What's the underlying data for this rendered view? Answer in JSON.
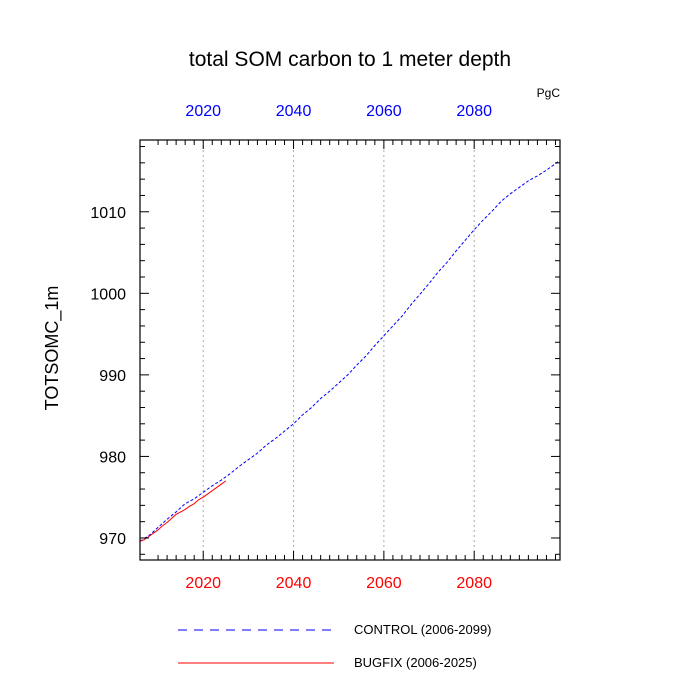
{
  "chart_data": {
    "type": "line",
    "title": "total SOM carbon to 1 meter depth",
    "units": "PgC",
    "ylabel": "TOTSOMC_1m",
    "xlabel": "",
    "xlim": [
      2006,
      2099
    ],
    "ylim": [
      967.3,
      1018.8
    ],
    "x_ticks": [
      "2020",
      "2040",
      "2060",
      "2080"
    ],
    "y_ticks": [
      "970",
      "980",
      "990",
      "1000",
      "1010"
    ],
    "grid": "vertical dotted at major x ticks",
    "colors": {
      "top_axis_labels": "#0000ff",
      "bottom_axis_labels": "#ff0000"
    },
    "series": [
      {
        "name": "CONTROL (2006-2099)",
        "color": "#0000ff",
        "dash": "dashed",
        "x": [
          2006,
          2008,
          2010,
          2012,
          2014,
          2016,
          2018,
          2020,
          2022,
          2024,
          2026,
          2028,
          2030,
          2032,
          2034,
          2036,
          2038,
          2040,
          2042,
          2044,
          2046,
          2048,
          2050,
          2052,
          2054,
          2056,
          2058,
          2060,
          2062,
          2064,
          2066,
          2068,
          2070,
          2072,
          2074,
          2076,
          2078,
          2080,
          2082,
          2084,
          2086,
          2088,
          2090,
          2092,
          2094,
          2096,
          2098,
          2099
        ],
        "values": [
          969.6,
          970.3,
          971.3,
          972.3,
          973.2,
          974.2,
          974.8,
          975.6,
          976.4,
          977.1,
          977.9,
          978.8,
          979.6,
          980.4,
          981.4,
          982.2,
          983.1,
          984.0,
          985.1,
          986.0,
          987.1,
          988.0,
          989.0,
          990.0,
          991.2,
          992.3,
          993.6,
          994.8,
          996.0,
          997.2,
          998.6,
          999.9,
          1001.2,
          1002.6,
          1003.8,
          1005.2,
          1006.5,
          1007.8,
          1009.0,
          1010.1,
          1011.3,
          1012.2,
          1013.0,
          1013.8,
          1014.4,
          1015.1,
          1015.9,
          1016.3
        ]
      },
      {
        "name": "BUGFIX (2006-2025)",
        "color": "#ff0000",
        "dash": "solid",
        "x": [
          2006,
          2007,
          2008,
          2009,
          2010,
          2011,
          2012,
          2013,
          2014,
          2015,
          2016,
          2017,
          2018,
          2019,
          2020,
          2021,
          2022,
          2023,
          2024,
          2025
        ],
        "values": [
          969.6,
          969.8,
          970.2,
          970.6,
          971.0,
          971.5,
          971.9,
          972.4,
          972.9,
          973.2,
          973.5,
          973.9,
          974.2,
          974.7,
          975.0,
          975.4,
          975.8,
          976.2,
          976.6,
          977.0
        ]
      }
    ]
  }
}
